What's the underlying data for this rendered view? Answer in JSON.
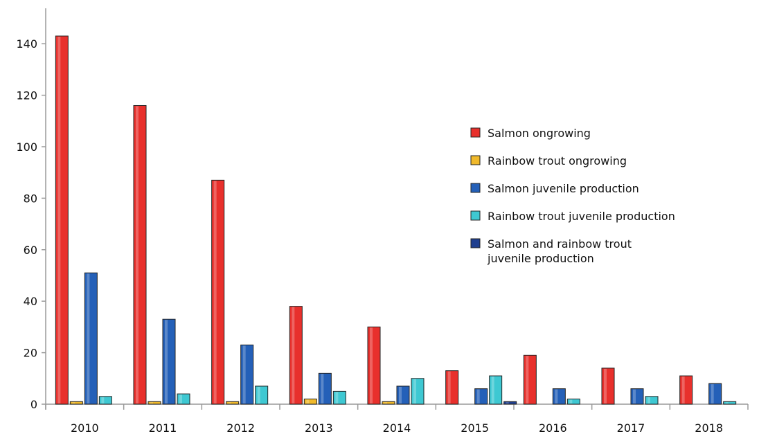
{
  "chart_data": {
    "type": "bar",
    "title": "",
    "xlabel": "",
    "ylabel": "",
    "ylim": [
      0,
      150
    ],
    "yticks": [
      0,
      20,
      40,
      60,
      80,
      100,
      120,
      140
    ],
    "grid": false,
    "legend_position": "right",
    "categories": [
      "2010",
      "2011",
      "2012",
      "2013",
      "2014",
      "2015",
      "2016",
      "2017",
      "2018"
    ],
    "series": [
      {
        "name": "Salmon ongrowing",
        "color": "#e8302c",
        "values": [
          143,
          116,
          87,
          38,
          30,
          13,
          19,
          14,
          11
        ]
      },
      {
        "name": "Rainbow trout ongrowing",
        "color": "#f0b92b",
        "values": [
          1,
          1,
          1,
          2,
          1,
          0,
          0,
          0,
          0
        ]
      },
      {
        "name": "Salmon juvenile production",
        "color": "#2460b8",
        "values": [
          51,
          33,
          23,
          12,
          7,
          6,
          6,
          6,
          8
        ]
      },
      {
        "name": "Rainbow trout juvenile production",
        "color": "#3ec8d2",
        "values": [
          3,
          4,
          7,
          5,
          10,
          11,
          2,
          3,
          1
        ]
      },
      {
        "name": "Salmon and rainbow trout juvenile production",
        "name_lines": [
          "Salmon and rainbow trout",
          "juvenile production"
        ],
        "color": "#1f3f8f",
        "values": [
          0,
          0,
          0,
          0,
          0,
          1,
          0,
          0,
          0
        ]
      }
    ]
  }
}
